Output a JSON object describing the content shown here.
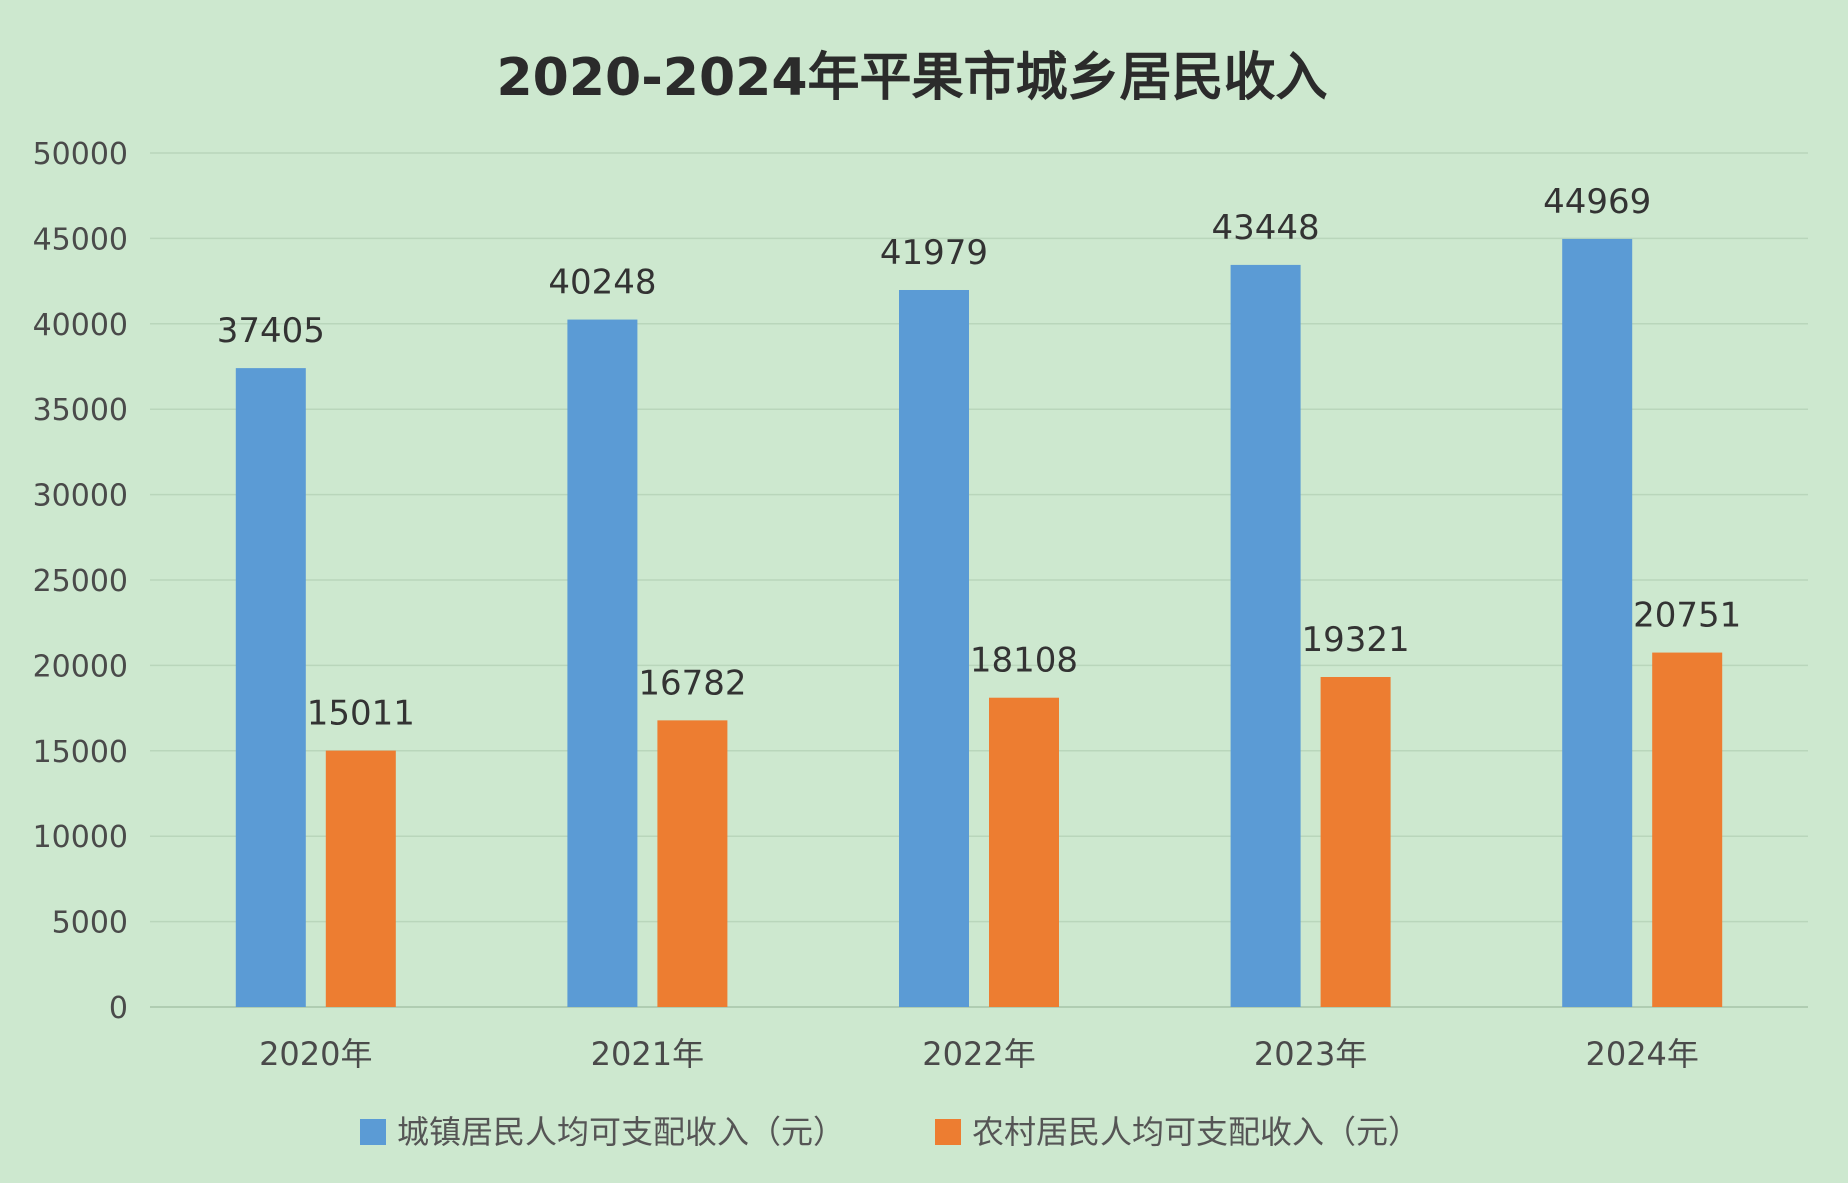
{
  "chart_data": {
    "type": "bar",
    "title": "2020-2024年平果市城乡居民收入",
    "categories": [
      "2020年",
      "2021年",
      "2022年",
      "2023年",
      "2024年"
    ],
    "series": [
      {
        "name": "城镇居民人均可支配收入（元）",
        "color": "#5b9bd5",
        "values": [
          37405,
          40248,
          41979,
          43448,
          44969
        ]
      },
      {
        "name": "农村居民人均可支配收入（元）",
        "color": "#ed7d31",
        "values": [
          15011,
          16782,
          18108,
          19321,
          20751
        ]
      }
    ],
    "ylim": [
      0,
      50000
    ],
    "yticks": [
      0,
      5000,
      10000,
      15000,
      20000,
      25000,
      30000,
      35000,
      40000,
      45000,
      50000
    ],
    "grid": true,
    "legend": "bottom",
    "background": "#cde8cf"
  }
}
